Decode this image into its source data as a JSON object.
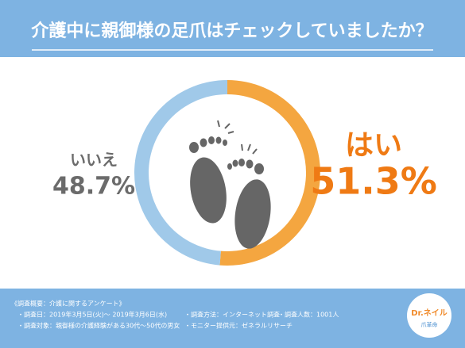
{
  "chart_data": {
    "type": "donut",
    "title": "介護中に親御様の足爪はチェックしていましたか？",
    "categories": [
      "はい",
      "いいえ"
    ],
    "values": [
      51.3,
      48.7
    ],
    "value_labels": [
      "51.3%",
      "48.7%"
    ],
    "colors": [
      "#f4a640",
      "#a0c9e9"
    ],
    "label_colors": [
      "#ef7a14",
      "#6b6b6b"
    ]
  },
  "footer": {
    "heading": "《調査概要：介護に関するアンケート》",
    "items": [
      "・調査日：2019年3月5日(火)～ 2019年3月6日(水)",
      "・調査方法：インターネット調査",
      "・調査人数：1001人",
      "・調査対象：親御様の介護経験がある30代～50代の男女",
      "・モニター提供元：ゼネラルリサーチ"
    ]
  },
  "logo": {
    "name": "Dr.ネイル",
    "sub": "爪革命"
  }
}
